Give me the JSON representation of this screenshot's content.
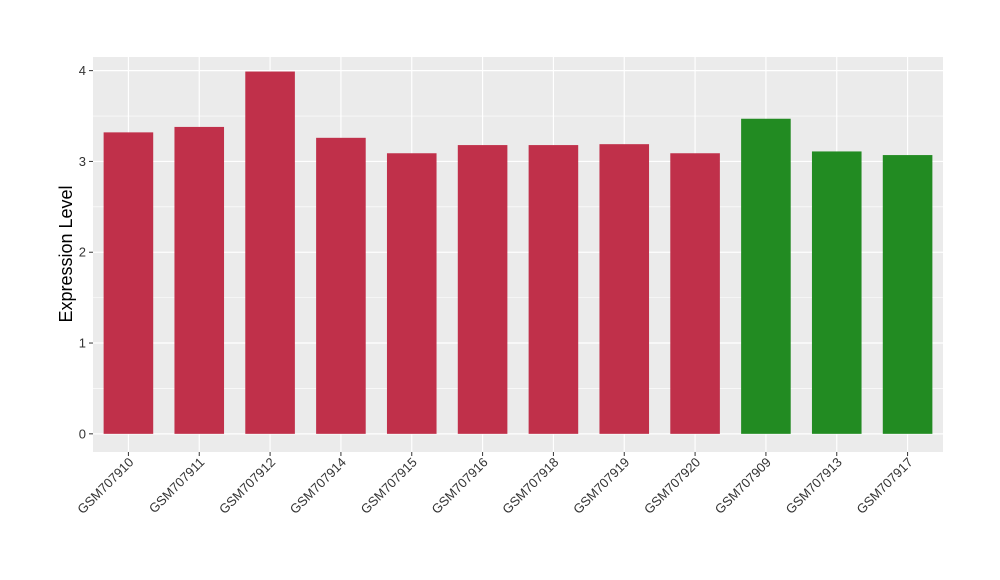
{
  "chart_data": {
    "type": "bar",
    "title": "",
    "xlabel": "",
    "ylabel": "Expression Level",
    "ylim": [
      -0.2,
      4.15
    ],
    "yticks": [
      0,
      1,
      2,
      3,
      4
    ],
    "grid": true,
    "legend": "none",
    "categories": [
      "GSM707910",
      "GSM707911",
      "GSM707912",
      "GSM707914",
      "GSM707915",
      "GSM707916",
      "GSM707918",
      "GSM707919",
      "GSM707920",
      "GSM707909",
      "GSM707913",
      "GSM707917"
    ],
    "values": [
      3.32,
      3.38,
      3.99,
      3.26,
      3.09,
      3.18,
      3.18,
      3.19,
      3.09,
      3.47,
      3.11,
      3.07
    ],
    "bar_colors": [
      "#c0304a",
      "#c0304a",
      "#c0304a",
      "#c0304a",
      "#c0304a",
      "#c0304a",
      "#c0304a",
      "#c0304a",
      "#c0304a",
      "#228b22",
      "#228b22",
      "#228b22"
    ],
    "panel_background": "#ebebeb",
    "grid_color": "#ffffff"
  }
}
